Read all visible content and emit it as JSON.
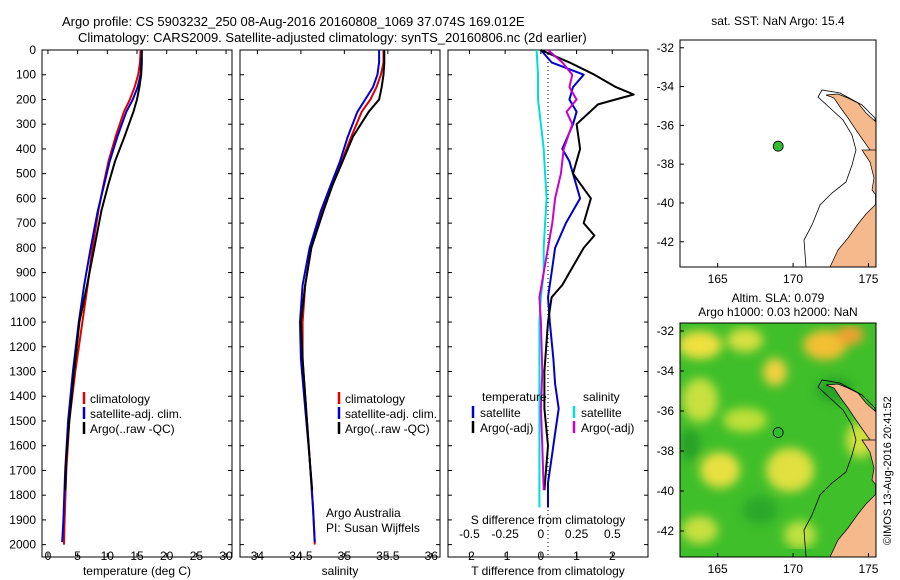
{
  "header": {
    "line1": "Argo profile: CS 5903232_250 08-Aug-2016 20160808_1069 37.074S 169.012E",
    "line2": "Climatology: CARS2009. Satellite-adjusted climatology: synTS_20160806.nc (2d earlier)"
  },
  "colors": {
    "climatology": "#e00000",
    "satellite": "#0000cc",
    "argo": "#000000",
    "sal_sat": "#00dddd",
    "sal_argo": "#cc00cc",
    "land": "#f6b98c",
    "marker": "#33bb33"
  },
  "depth_axis": {
    "ticks": [
      "0",
      "100",
      "200",
      "300",
      "400",
      "500",
      "600",
      "700",
      "800",
      "900",
      "1000",
      "1100",
      "1200",
      "1300",
      "1400",
      "1500",
      "1600",
      "1700",
      "1800",
      "1900",
      "2000"
    ],
    "lim": [
      0,
      2050
    ]
  },
  "chart_data": [
    {
      "type": "line",
      "xlabel": "temperature (deg C)",
      "xlim": [
        -1,
        31
      ],
      "xticks": [
        "0",
        "5",
        "10",
        "15",
        "20",
        "25",
        "30"
      ],
      "ylim": [
        0,
        2050
      ],
      "legend": [
        "climatology",
        "satellite-adj. clim.",
        "Argo(..raw -QC)"
      ],
      "series": [
        {
          "name": "climatology",
          "x": [
            15.6,
            15.5,
            15.2,
            14.6,
            13.8,
            12.8,
            11.4,
            10.2,
            9.3,
            8.5,
            7.5,
            6.7,
            5.8,
            4.6,
            3.6,
            3.1,
            2.8,
            2.7
          ],
          "y": [
            0,
            50,
            100,
            150,
            200,
            250,
            350,
            450,
            550,
            650,
            800,
            950,
            1100,
            1300,
            1500,
            1700,
            1900,
            2000
          ]
        },
        {
          "name": "satellite-adj. clim.",
          "x": [
            15.8,
            15.7,
            15.6,
            15.1,
            14.3,
            13.2,
            11.7,
            10.4,
            9.4,
            8.4,
            7.2,
            6.1,
            5.2,
            4.2,
            3.4,
            2.9,
            2.6,
            2.4
          ],
          "y": [
            0,
            50,
            100,
            150,
            200,
            250,
            350,
            450,
            550,
            650,
            800,
            950,
            1100,
            1300,
            1500,
            1700,
            1900,
            1990
          ]
        },
        {
          "name": "Argo(..raw -QC)",
          "x": [
            15.8,
            15.8,
            15.7,
            15.4,
            15.0,
            14.4,
            12.9,
            11.3,
            10.1,
            9.0,
            7.8,
            6.6,
            5.3,
            4.4,
            3.6,
            3.1,
            2.9
          ],
          "y": [
            0,
            50,
            100,
            150,
            200,
            250,
            350,
            450,
            550,
            650,
            800,
            950,
            1100,
            1300,
            1500,
            1650,
            1780
          ]
        }
      ]
    },
    {
      "type": "line",
      "xlabel": "salinity",
      "xlim": [
        33.8,
        36.1
      ],
      "xticks": [
        "34",
        "34.5",
        "35",
        "35.5",
        "36"
      ],
      "ylim": [
        0,
        2050
      ],
      "legend": [
        "climatology",
        "satellite-adj. clim.",
        "Argo(..raw -QC)"
      ],
      "annotation": [
        "Argo Australia",
        "PI: Susan Wijffels"
      ],
      "series": [
        {
          "name": "climatology",
          "x": [
            35.45,
            35.45,
            35.42,
            35.37,
            35.3,
            35.2,
            35.08,
            34.97,
            34.85,
            34.75,
            34.62,
            34.55,
            34.52,
            34.52,
            34.56,
            34.6,
            34.64,
            34.66
          ],
          "y": [
            0,
            50,
            100,
            150,
            200,
            250,
            350,
            450,
            550,
            650,
            800,
            950,
            1100,
            1250,
            1450,
            1650,
            1850,
            2000
          ]
        },
        {
          "name": "satellite-adj. clim.",
          "x": [
            35.4,
            35.4,
            35.38,
            35.33,
            35.24,
            35.15,
            35.04,
            34.95,
            34.84,
            34.73,
            34.6,
            34.52,
            34.49,
            34.5,
            34.55,
            34.6,
            34.64,
            34.66
          ],
          "y": [
            0,
            50,
            100,
            150,
            200,
            250,
            350,
            450,
            550,
            650,
            800,
            950,
            1100,
            1250,
            1450,
            1650,
            1850,
            1990
          ]
        },
        {
          "name": "Argo(..raw -QC)",
          "x": [
            35.46,
            35.46,
            35.45,
            35.43,
            35.4,
            35.28,
            35.1,
            34.98,
            34.86,
            34.76,
            34.62,
            34.55,
            34.5,
            34.52,
            34.56,
            34.6,
            34.63
          ],
          "y": [
            0,
            50,
            100,
            150,
            200,
            250,
            350,
            450,
            550,
            650,
            800,
            950,
            1100,
            1250,
            1450,
            1650,
            1780
          ]
        }
      ]
    },
    {
      "type": "line",
      "xlabel": "T difference from climatology",
      "xlabel2": "S difference from climatology",
      "xlim": [
        -2.6,
        3
      ],
      "xticks": [
        "-2",
        "-1",
        "0",
        "1",
        "2"
      ],
      "top_ticks": [
        "-0.5",
        "-0.25",
        "0",
        "0.25",
        "0.5"
      ],
      "ylim": [
        0,
        2050
      ],
      "legend_title_t": "temperature",
      "legend_title_s": "salinity",
      "legend_t": [
        "satellite",
        "Argo(-adj)"
      ],
      "legend_s": [
        "satellite",
        "Argo(-adj)"
      ],
      "series": [
        {
          "name": "T satellite",
          "x": [
            0.0,
            0.3,
            1.2,
            0.9,
            0.8,
            1.0,
            0.9,
            0.6,
            0.8,
            0.9,
            1.1,
            0.7,
            0.4,
            0.3,
            0.2,
            0.25,
            0.35,
            0.4,
            0.5,
            0.4,
            0.3,
            0.2,
            0.2
          ],
          "y": [
            0,
            50,
            100,
            150,
            200,
            250,
            300,
            400,
            450,
            500,
            600,
            700,
            800,
            900,
            1000,
            1100,
            1250,
            1350,
            1450,
            1550,
            1650,
            1750,
            1850
          ]
        },
        {
          "name": "T Argo(-adj)",
          "x": [
            0.0,
            0.8,
            1.5,
            2.1,
            2.6,
            1.6,
            1.0,
            1.1,
            0.9,
            1.4,
            1.2,
            1.5,
            1.2,
            0.8,
            0.6,
            0.3,
            0.2,
            0.1,
            0.1,
            0.2,
            0.1
          ],
          "y": [
            0,
            50,
            100,
            150,
            180,
            220,
            300,
            400,
            500,
            600,
            700,
            750,
            800,
            900,
            950,
            1000,
            1100,
            1300,
            1450,
            1600,
            1780
          ]
        },
        {
          "name": "S satellite",
          "x": [
            -0.03,
            -0.02,
            -0.02,
            0.0,
            0.02,
            0.03,
            0.04,
            0.03,
            0.02,
            0.02,
            0.0,
            -0.01,
            -0.01,
            -0.01,
            -0.01,
            -0.01,
            -0.01,
            -0.01,
            -0.01
          ],
          "y": [
            0,
            100,
            200,
            300,
            400,
            500,
            600,
            700,
            800,
            900,
            1000,
            1100,
            1200,
            1300,
            1400,
            1500,
            1600,
            1700,
            1850
          ]
        },
        {
          "name": "S Argo(-adj)",
          "x": [
            0.05,
            0.15,
            0.22,
            0.2,
            0.25,
            0.18,
            0.22,
            0.16,
            0.14,
            0.1,
            0.08,
            0.05,
            0.02,
            -0.01,
            0.0,
            0.01,
            0.0,
            0.01,
            0.02
          ],
          "y": [
            0,
            50,
            100,
            150,
            200,
            250,
            300,
            400,
            500,
            600,
            700,
            800,
            900,
            1000,
            1100,
            1300,
            1450,
            1600,
            1780
          ]
        }
      ]
    }
  ],
  "map_sst": {
    "title": "sat. SST: NaN Argo: 15.4",
    "yticks": [
      "-32",
      "-34",
      "-36",
      "-38",
      "-40",
      "-42"
    ],
    "xticks": [
      "165",
      "170",
      "175"
    ],
    "lon": [
      162.5,
      175.5
    ],
    "lat": [
      -43.3,
      -31.6
    ],
    "marker": {
      "lon": 169.012,
      "lat": -37.074
    }
  },
  "map_sla": {
    "title": "Altim. SLA: 0.079",
    "subtitle": "Argo h1000: 0.03 h2000: NaN",
    "yticks": [
      "-32",
      "-34",
      "-36",
      "-38",
      "-40",
      "-42"
    ],
    "xticks": [
      "165",
      "170",
      "175"
    ],
    "lon": [
      162.5,
      175.5
    ],
    "lat": [
      -43.3,
      -31.6
    ],
    "marker": {
      "lon": 169.012,
      "lat": -37.074
    }
  },
  "credit": "©IMOS 13-Aug-2016 20:41:52"
}
